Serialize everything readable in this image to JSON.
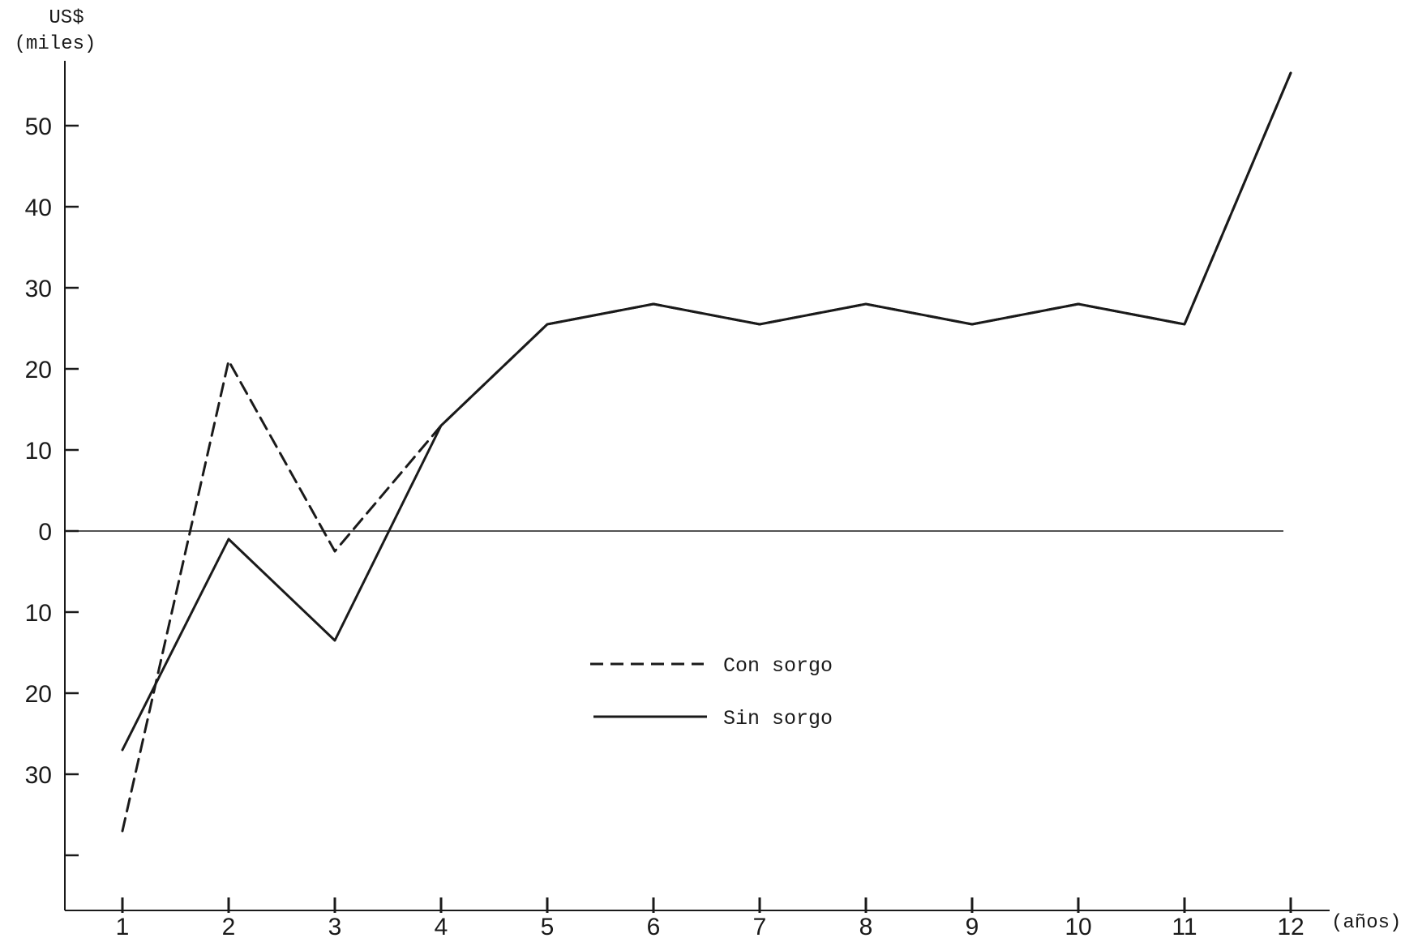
{
  "chart_data": {
    "type": "line",
    "ylabel_line1": "US$",
    "ylabel_line2": "(miles)",
    "xlabel": "(años)",
    "x": [
      1,
      2,
      3,
      4,
      5,
      6,
      7,
      8,
      9,
      10,
      11,
      12
    ],
    "x_tick_labels": [
      "1",
      "2",
      "3",
      "4",
      "5",
      "6",
      "7",
      "8",
      "9",
      "10",
      "11",
      "12"
    ],
    "y_ticks": [
      50,
      40,
      30,
      20,
      10,
      0,
      -10,
      -20,
      -30,
      -40
    ],
    "y_tick_labels": [
      "50",
      "40",
      "30",
      "20",
      "10",
      "0",
      "10",
      "20",
      "30",
      ""
    ],
    "ylim": [
      -47,
      58
    ],
    "grid": false,
    "legend_position": "center",
    "series": [
      {
        "name": "Con sorgo",
        "style": "dashed",
        "color": "#1a1a1a",
        "values": [
          -37,
          21,
          -2.5,
          13,
          25.5,
          28,
          25.5,
          28,
          25.5,
          28,
          25.5,
          56.5
        ]
      },
      {
        "name": "Sin sorgo",
        "style": "solid",
        "color": "#1a1a1a",
        "values": [
          -27,
          -1,
          -13.5,
          13,
          25.5,
          28,
          25.5,
          28,
          25.5,
          28,
          25.5,
          56.5
        ]
      }
    ]
  }
}
